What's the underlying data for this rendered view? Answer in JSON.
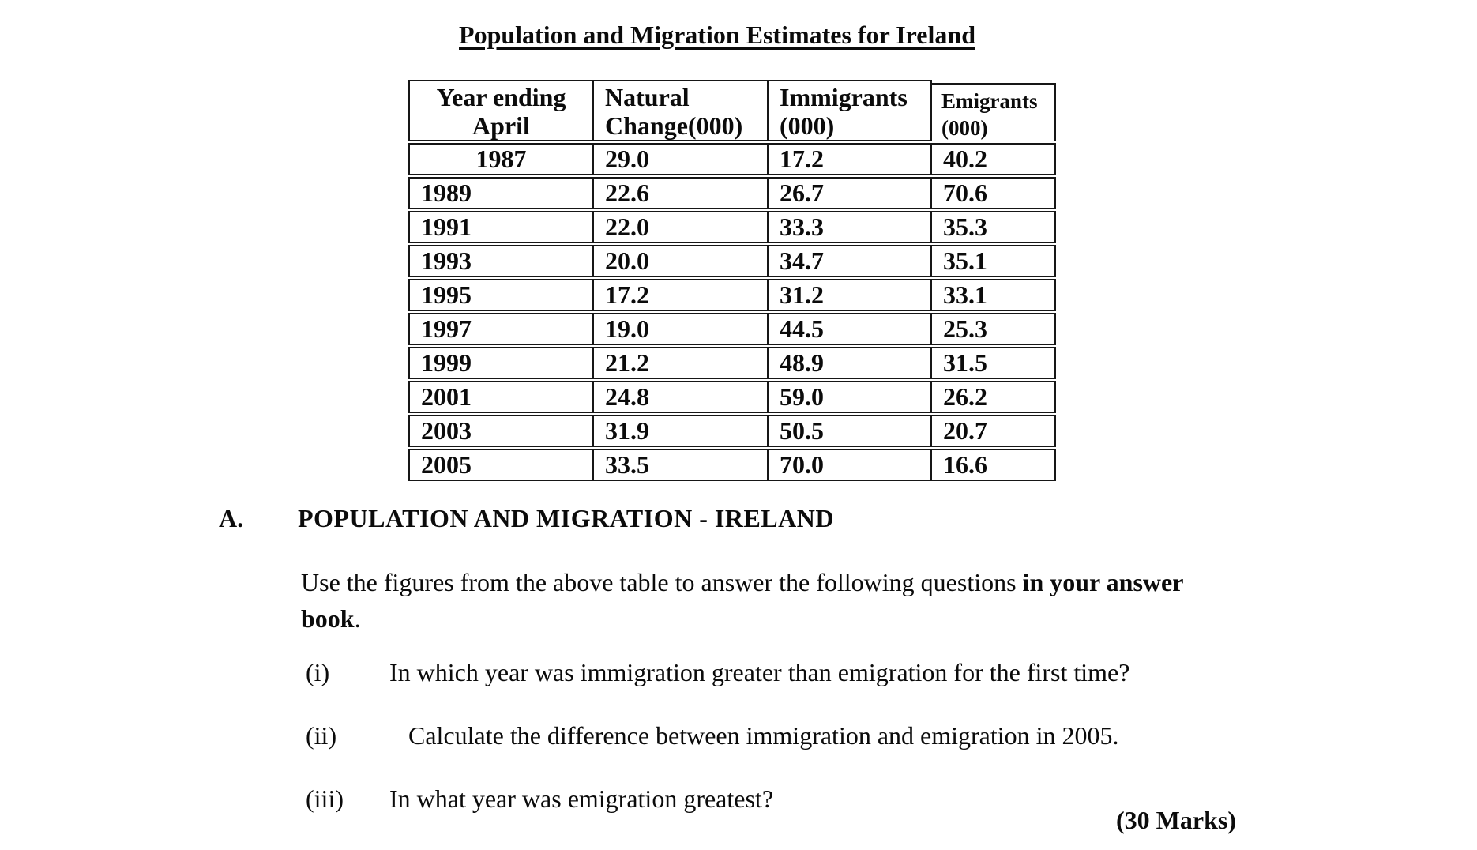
{
  "page": {
    "title": "Population and Migration Estimates for Ireland"
  },
  "table": {
    "columns": [
      {
        "line1": "Year ending",
        "line2": "April"
      },
      {
        "line1": "Natural",
        "line2": "Change(000)"
      },
      {
        "line1": "Immigrants",
        "line2": "(000)"
      },
      {
        "line1": "Emigrants",
        "line2": "(000)"
      }
    ],
    "rows": [
      {
        "year": "1987",
        "natural_change": "29.0",
        "immigrants": "17.2",
        "emigrants": "40.2"
      },
      {
        "year": "1989",
        "natural_change": "22.6",
        "immigrants": "26.7",
        "emigrants": "70.6"
      },
      {
        "year": "1991",
        "natural_change": "22.0",
        "immigrants": "33.3",
        "emigrants": "35.3"
      },
      {
        "year": "1993",
        "natural_change": "20.0",
        "immigrants": "34.7",
        "emigrants": "35.1"
      },
      {
        "year": "1995",
        "natural_change": "17.2",
        "immigrants": "31.2",
        "emigrants": "33.1"
      },
      {
        "year": "1997",
        "natural_change": "19.0",
        "immigrants": "44.5",
        "emigrants": "25.3"
      },
      {
        "year": "1999",
        "natural_change": "21.2",
        "immigrants": "48.9",
        "emigrants": "31.5"
      },
      {
        "year": "2001",
        "natural_change": "24.8",
        "immigrants": "59.0",
        "emigrants": "26.2"
      },
      {
        "year": "2003",
        "natural_change": "31.9",
        "immigrants": "50.5",
        "emigrants": "20.7"
      },
      {
        "year": "2005",
        "natural_change": "33.5",
        "immigrants": "70.0",
        "emigrants": "16.6"
      }
    ]
  },
  "section": {
    "label": "A.",
    "heading": "POPULATION AND MIGRATION - IRELAND",
    "intro": [
      [
        {
          "t": "Use the figures from the above table to answer the following questions ",
          "b": false
        },
        {
          "t": "in your answer",
          "b": true
        }
      ],
      [
        {
          "t": "book",
          "b": true
        },
        {
          "t": ".",
          "b": false
        }
      ]
    ],
    "questions": [
      {
        "num": "(i)",
        "text": "In which year was immigration greater than emigration for the first time?"
      },
      {
        "num": "(ii)",
        "text": "Calculate the difference between immigration and emigration in 2005."
      },
      {
        "num": "(iii)",
        "text": "In what year was emigration greatest?"
      }
    ],
    "marks": "(30 Marks)"
  }
}
